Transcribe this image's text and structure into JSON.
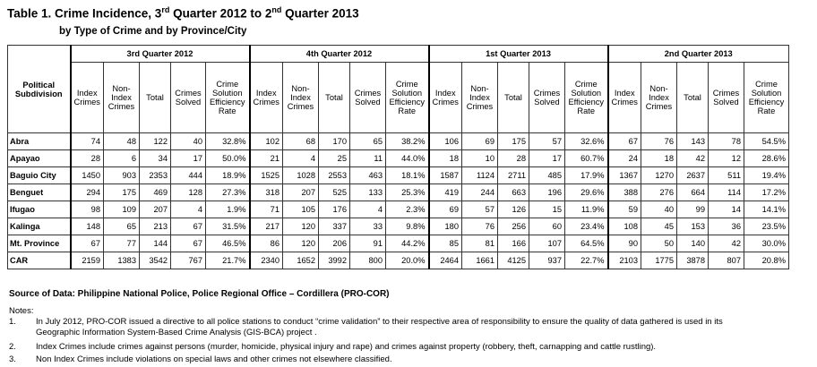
{
  "title": {
    "main_a": "Table 1. Crime Incidence, 3",
    "sup_a": "rd",
    "main_b": " Quarter 2012 to 2",
    "sup_b": "nd",
    "main_c": " Quarter 2013",
    "subtitle": "by Type of Crime and by Province/City"
  },
  "table": {
    "row_header": "Political Subdivision",
    "quarters": [
      "3rd Quarter 2012",
      "4th Quarter 2012",
      "1st Quarter 2013",
      "2nd Quarter 2013"
    ],
    "sub_headers": [
      "Index Crimes",
      "Non-Index Crimes",
      "Total",
      "Crimes Solved",
      "Crime Solution Efficiency Rate"
    ],
    "rows": [
      {
        "name": "Abra",
        "values": [
          "74",
          "48",
          "122",
          "40",
          "32.8%",
          "102",
          "68",
          "170",
          "65",
          "38.2%",
          "106",
          "69",
          "175",
          "57",
          "32.6%",
          "67",
          "76",
          "143",
          "78",
          "54.5%"
        ]
      },
      {
        "name": "Apayao",
        "values": [
          "28",
          "6",
          "34",
          "17",
          "50.0%",
          "21",
          "4",
          "25",
          "11",
          "44.0%",
          "18",
          "10",
          "28",
          "17",
          "60.7%",
          "24",
          "18",
          "42",
          "12",
          "28.6%"
        ]
      },
      {
        "name": "Baguio City",
        "values": [
          "1450",
          "903",
          "2353",
          "444",
          "18.9%",
          "1525",
          "1028",
          "2553",
          "463",
          "18.1%",
          "1587",
          "1124",
          "2711",
          "485",
          "17.9%",
          "1367",
          "1270",
          "2637",
          "511",
          "19.4%"
        ]
      },
      {
        "name": "Benguet",
        "values": [
          "294",
          "175",
          "469",
          "128",
          "27.3%",
          "318",
          "207",
          "525",
          "133",
          "25.3%",
          "419",
          "244",
          "663",
          "196",
          "29.6%",
          "388",
          "276",
          "664",
          "114",
          "17.2%"
        ]
      },
      {
        "name": "Ifugao",
        "values": [
          "98",
          "109",
          "207",
          "4",
          "1.9%",
          "71",
          "105",
          "176",
          "4",
          "2.3%",
          "69",
          "57",
          "126",
          "15",
          "11.9%",
          "59",
          "40",
          "99",
          "14",
          "14.1%"
        ]
      },
      {
        "name": "Kalinga",
        "values": [
          "148",
          "65",
          "213",
          "67",
          "31.5%",
          "217",
          "120",
          "337",
          "33",
          "9.8%",
          "180",
          "76",
          "256",
          "60",
          "23.4%",
          "108",
          "45",
          "153",
          "36",
          "23.5%"
        ]
      },
      {
        "name": "Mt. Province",
        "values": [
          "67",
          "77",
          "144",
          "67",
          "46.5%",
          "86",
          "120",
          "206",
          "91",
          "44.2%",
          "85",
          "81",
          "166",
          "107",
          "64.5%",
          "90",
          "50",
          "140",
          "42",
          "30.0%"
        ]
      },
      {
        "name": "CAR",
        "values": [
          "2159",
          "1383",
          "3542",
          "767",
          "21.7%",
          "2340",
          "1652",
          "3992",
          "800",
          "20.0%",
          "2464",
          "1661",
          "4125",
          "937",
          "22.7%",
          "2103",
          "1775",
          "3878",
          "807",
          "20.8%"
        ]
      }
    ]
  },
  "source": "Source of Data: Philippine National Police, Police Regional Office – Cordillera (PRO-COR)",
  "notes_heading": "Notes:",
  "notes": [
    {
      "num": "1.",
      "text": "In July 2012, PRO-COR  issued  a directive to all police stations to conduct “crime validation” to their respective area of responsibility to ensure the quality of data gathered is used  in its",
      "cont": "Geographic Information System-Based Crime Analysis (GIS-BCA) project ."
    },
    {
      "num": "2.",
      "text": "Index Crimes include crimes against persons (murder, homicide, physical injury and rape) and crimes against property (robbery, theft, carnapping and cattle rustling)."
    },
    {
      "num": "3.",
      "text": "Non Index Crimes include violations on special laws and other crimes not elsewhere classified."
    }
  ]
}
